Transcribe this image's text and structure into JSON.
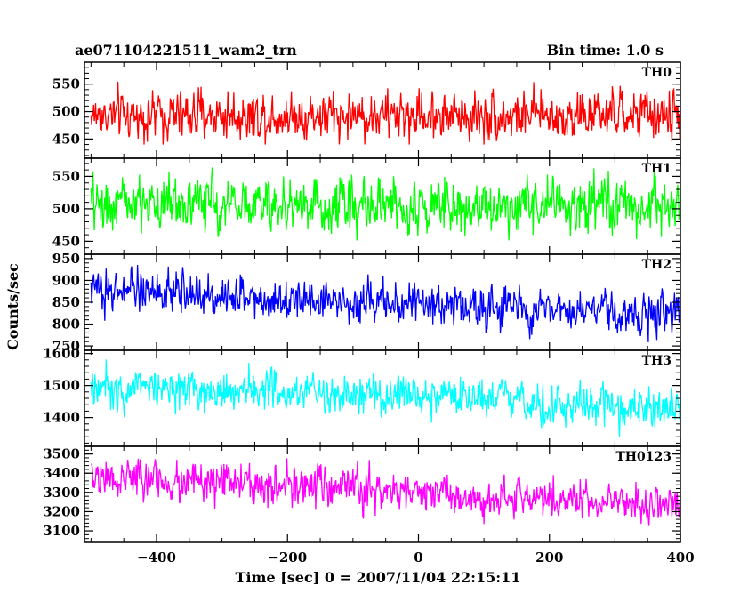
{
  "chart_data": {
    "type": "line",
    "title": "ae071104221511_wam2_trn",
    "subtitle": "Bin time: 1.0 s",
    "xlabel": "Time [sec] 0 = 2007/11/04 22:15:11",
    "ylabel": "Counts/sec",
    "xlim": [
      -510,
      400
    ],
    "xticks": [
      -400,
      -200,
      0,
      200,
      400
    ],
    "grid": false,
    "panels": [
      {
        "name": "TH0",
        "color": "#ff0000",
        "ylim": [
          415,
          590
        ],
        "yticks": [
          450,
          500,
          550
        ],
        "trend": {
          "x": [
            -500,
            400
          ],
          "y": [
            493,
            493
          ]
        },
        "noise_amplitude": 29,
        "clip": [
          440,
          590
        ]
      },
      {
        "name": "TH1",
        "color": "#00ff00",
        "ylim": [
          430,
          578
        ],
        "yticks": [
          450,
          500,
          550
        ],
        "trend": {
          "x": [
            -500,
            400
          ],
          "y": [
            508,
            504
          ]
        },
        "noise_amplitude": 27,
        "clip": [
          432,
          578
        ]
      },
      {
        "name": "TH2",
        "color": "#0000ff",
        "ylim": [
          740,
          960
        ],
        "yticks": [
          750,
          800,
          850,
          900,
          950
        ],
        "trend": {
          "x": [
            -500,
            400
          ],
          "y": [
            880,
            820
          ]
        },
        "noise_amplitude": 30,
        "clip": [
          742,
          960
        ]
      },
      {
        "name": "TH3",
        "color": "#00ffff",
        "ylim": [
          1310,
          1610
        ],
        "yticks": [
          1400,
          1500,
          1600
        ],
        "trend": {
          "x": [
            -500,
            400
          ],
          "y": [
            1505,
            1425
          ]
        },
        "noise_amplitude": 42,
        "clip": [
          1312,
          1640
        ]
      },
      {
        "name": "TH0123",
        "color": "#ff00ff",
        "ylim": [
          3040,
          3540
        ],
        "yticks": [
          3100,
          3200,
          3300,
          3400,
          3500
        ],
        "trend": {
          "x": [
            -500,
            400
          ],
          "y": [
            3380,
            3230
          ]
        },
        "noise_amplitude": 68,
        "clip": [
          3040,
          3560
        ]
      }
    ]
  }
}
